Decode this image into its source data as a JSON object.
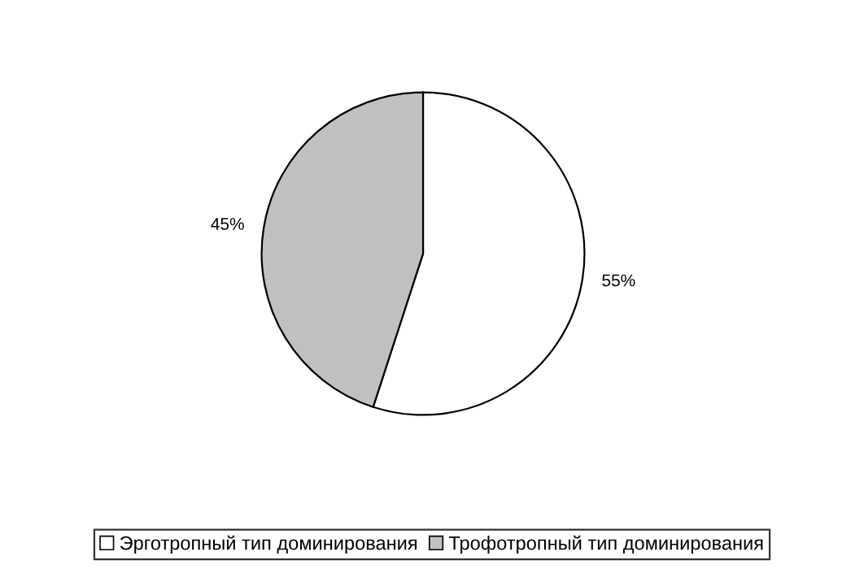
{
  "chart_data": {
    "type": "pie",
    "categories": [
      "Эрготропный тип доминирования",
      "Трофотропный тип доминирования"
    ],
    "values": [
      55,
      45
    ],
    "colors": [
      "#ffffff",
      "#c0c0c0"
    ],
    "value_labels": [
      "55%",
      "45%"
    ],
    "legend": "bottom"
  }
}
